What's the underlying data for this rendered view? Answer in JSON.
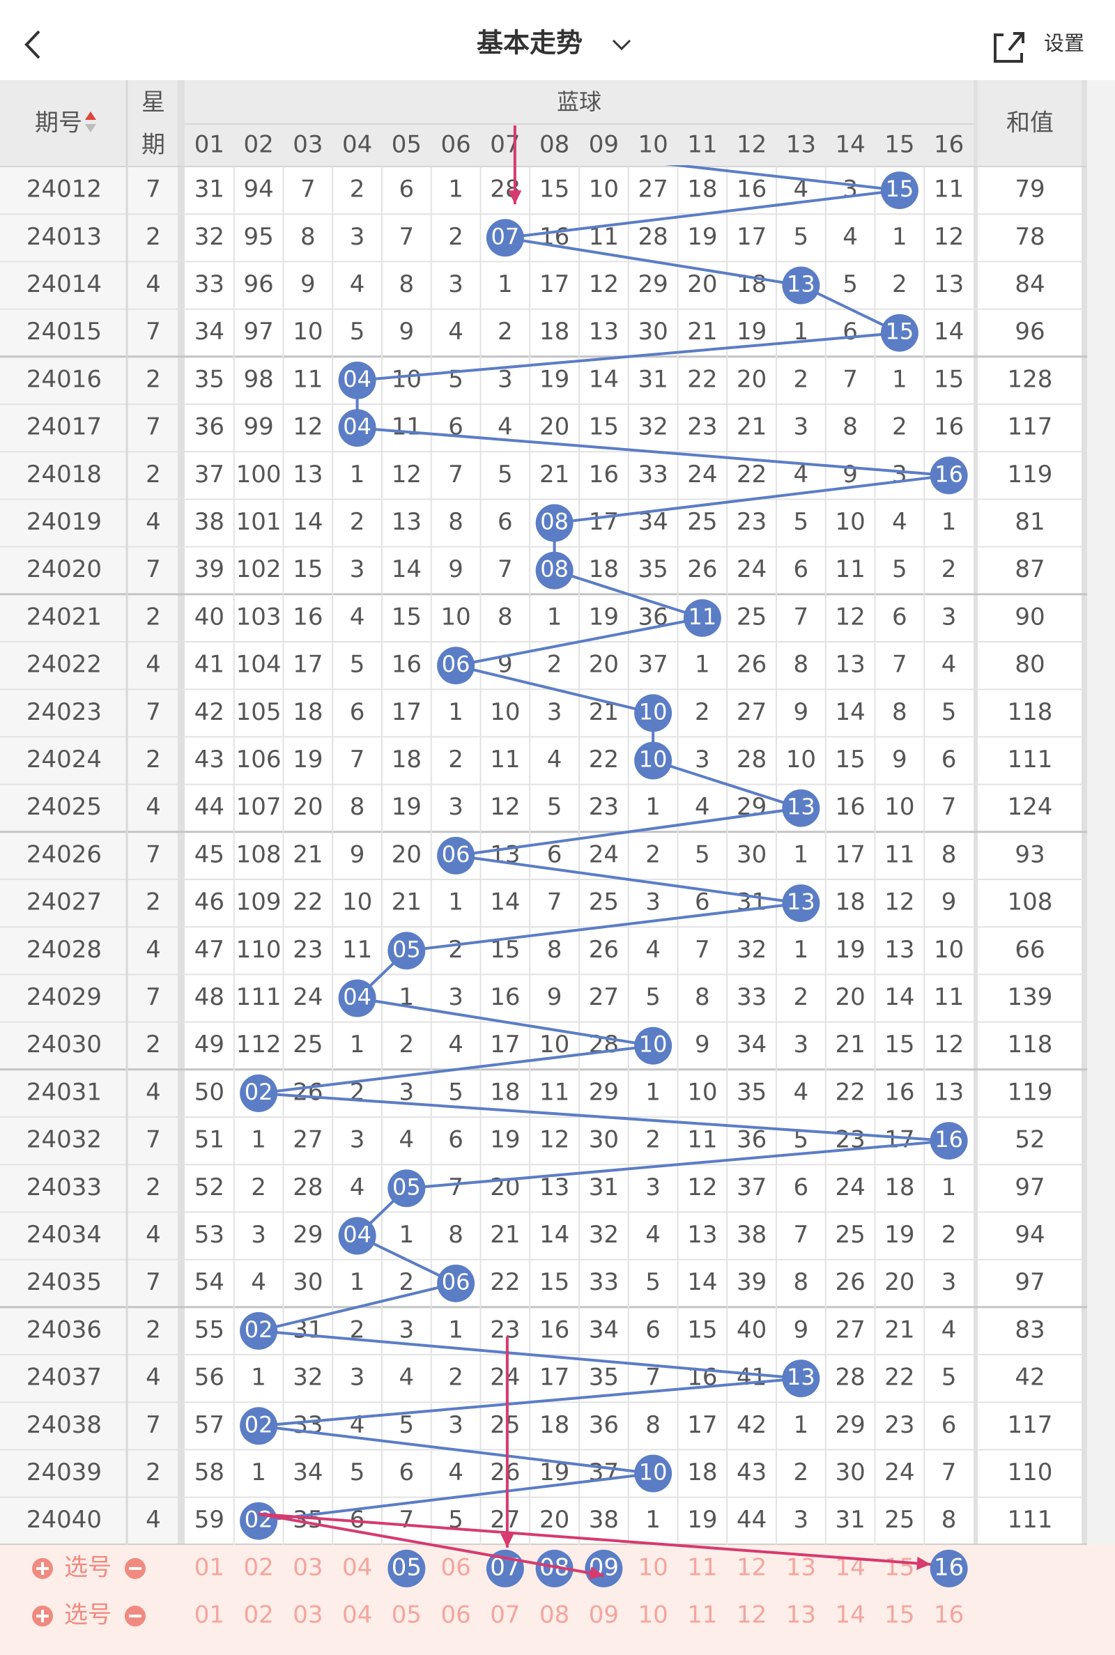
{
  "header": {
    "title": "基本走势",
    "settings": "设置"
  },
  "table": {
    "period_header": "期号",
    "weekday_header": "星期",
    "blue_header": "蓝球",
    "sum_header": "和值",
    "columns": [
      "01",
      "02",
      "03",
      "04",
      "05",
      "06",
      "07",
      "08",
      "09",
      "10",
      "11",
      "12",
      "13",
      "14",
      "15",
      "16"
    ],
    "rows": [
      {
        "period": "24012",
        "weekday": "7",
        "hit": 14,
        "cells": [
          "31",
          "94",
          "7",
          "2",
          "6",
          "1",
          "28",
          "15",
          "10",
          "27",
          "18",
          "16",
          "4",
          "3",
          "15",
          "11"
        ],
        "sum": "79"
      },
      {
        "period": "24013",
        "weekday": "2",
        "hit": 6,
        "cells": [
          "32",
          "95",
          "8",
          "3",
          "7",
          "2",
          "07",
          "16",
          "11",
          "28",
          "19",
          "17",
          "5",
          "4",
          "1",
          "12"
        ],
        "sum": "78"
      },
      {
        "period": "24014",
        "weekday": "4",
        "hit": 12,
        "cells": [
          "33",
          "96",
          "9",
          "4",
          "8",
          "3",
          "1",
          "17",
          "12",
          "29",
          "20",
          "18",
          "13",
          "5",
          "2",
          "13"
        ],
        "sum": "84"
      },
      {
        "period": "24015",
        "weekday": "7",
        "hit": 14,
        "cells": [
          "34",
          "97",
          "10",
          "5",
          "9",
          "4",
          "2",
          "18",
          "13",
          "30",
          "21",
          "19",
          "1",
          "6",
          "15",
          "14"
        ],
        "sum": "96"
      },
      {
        "period": "24016",
        "weekday": "2",
        "hit": 3,
        "cells": [
          "35",
          "98",
          "11",
          "04",
          "10",
          "5",
          "3",
          "19",
          "14",
          "31",
          "22",
          "20",
          "2",
          "7",
          "1",
          "15"
        ],
        "sum": "128"
      },
      {
        "period": "24017",
        "weekday": "7",
        "hit": 3,
        "cells": [
          "36",
          "99",
          "12",
          "04",
          "11",
          "6",
          "4",
          "20",
          "15",
          "32",
          "23",
          "21",
          "3",
          "8",
          "2",
          "16"
        ],
        "sum": "117"
      },
      {
        "period": "24018",
        "weekday": "2",
        "hit": 15,
        "cells": [
          "37",
          "100",
          "13",
          "1",
          "12",
          "7",
          "5",
          "21",
          "16",
          "33",
          "24",
          "22",
          "4",
          "9",
          "3",
          "16"
        ],
        "sum": "119"
      },
      {
        "period": "24019",
        "weekday": "4",
        "hit": 7,
        "cells": [
          "38",
          "101",
          "14",
          "2",
          "13",
          "8",
          "6",
          "08",
          "17",
          "34",
          "25",
          "23",
          "5",
          "10",
          "4",
          "1"
        ],
        "sum": "81"
      },
      {
        "period": "24020",
        "weekday": "7",
        "hit": 7,
        "cells": [
          "39",
          "102",
          "15",
          "3",
          "14",
          "9",
          "7",
          "08",
          "18",
          "35",
          "26",
          "24",
          "6",
          "11",
          "5",
          "2"
        ],
        "sum": "87"
      },
      {
        "period": "24021",
        "weekday": "2",
        "hit": 10,
        "cells": [
          "40",
          "103",
          "16",
          "4",
          "15",
          "10",
          "8",
          "1",
          "19",
          "36",
          "11",
          "25",
          "7",
          "12",
          "6",
          "3"
        ],
        "sum": "90"
      },
      {
        "period": "24022",
        "weekday": "4",
        "hit": 5,
        "cells": [
          "41",
          "104",
          "17",
          "5",
          "16",
          "06",
          "9",
          "2",
          "20",
          "37",
          "1",
          "26",
          "8",
          "13",
          "7",
          "4"
        ],
        "sum": "80"
      },
      {
        "period": "24023",
        "weekday": "7",
        "hit": 9,
        "cells": [
          "42",
          "105",
          "18",
          "6",
          "17",
          "1",
          "10",
          "3",
          "21",
          "10",
          "2",
          "27",
          "9",
          "14",
          "8",
          "5"
        ],
        "sum": "118"
      },
      {
        "period": "24024",
        "weekday": "2",
        "hit": 9,
        "cells": [
          "43",
          "106",
          "19",
          "7",
          "18",
          "2",
          "11",
          "4",
          "22",
          "10",
          "3",
          "28",
          "10",
          "15",
          "9",
          "6"
        ],
        "sum": "111"
      },
      {
        "period": "24025",
        "weekday": "4",
        "hit": 12,
        "cells": [
          "44",
          "107",
          "20",
          "8",
          "19",
          "3",
          "12",
          "5",
          "23",
          "1",
          "4",
          "29",
          "13",
          "16",
          "10",
          "7"
        ],
        "sum": "124"
      },
      {
        "period": "24026",
        "weekday": "7",
        "hit": 5,
        "cells": [
          "45",
          "108",
          "21",
          "9",
          "20",
          "06",
          "13",
          "6",
          "24",
          "2",
          "5",
          "30",
          "1",
          "17",
          "11",
          "8"
        ],
        "sum": "93"
      },
      {
        "period": "24027",
        "weekday": "2",
        "hit": 12,
        "cells": [
          "46",
          "109",
          "22",
          "10",
          "21",
          "1",
          "14",
          "7",
          "25",
          "3",
          "6",
          "31",
          "13",
          "18",
          "12",
          "9"
        ],
        "sum": "108"
      },
      {
        "period": "24028",
        "weekday": "4",
        "hit": 4,
        "cells": [
          "47",
          "110",
          "23",
          "11",
          "05",
          "2",
          "15",
          "8",
          "26",
          "4",
          "7",
          "32",
          "1",
          "19",
          "13",
          "10"
        ],
        "sum": "66"
      },
      {
        "period": "24029",
        "weekday": "7",
        "hit": 3,
        "cells": [
          "48",
          "111",
          "24",
          "04",
          "1",
          "3",
          "16",
          "9",
          "27",
          "5",
          "8",
          "33",
          "2",
          "20",
          "14",
          "11"
        ],
        "sum": "139"
      },
      {
        "period": "24030",
        "weekday": "2",
        "hit": 9,
        "cells": [
          "49",
          "112",
          "25",
          "1",
          "2",
          "4",
          "17",
          "10",
          "28",
          "10",
          "9",
          "34",
          "3",
          "21",
          "15",
          "12"
        ],
        "sum": "118"
      },
      {
        "period": "24031",
        "weekday": "4",
        "hit": 1,
        "cells": [
          "50",
          "02",
          "26",
          "2",
          "3",
          "5",
          "18",
          "11",
          "29",
          "1",
          "10",
          "35",
          "4",
          "22",
          "16",
          "13"
        ],
        "sum": "119"
      },
      {
        "period": "24032",
        "weekday": "7",
        "hit": 15,
        "cells": [
          "51",
          "1",
          "27",
          "3",
          "4",
          "6",
          "19",
          "12",
          "30",
          "2",
          "11",
          "36",
          "5",
          "23",
          "17",
          "16"
        ],
        "sum": "52"
      },
      {
        "period": "24033",
        "weekday": "2",
        "hit": 4,
        "cells": [
          "52",
          "2",
          "28",
          "4",
          "05",
          "7",
          "20",
          "13",
          "31",
          "3",
          "12",
          "37",
          "6",
          "24",
          "18",
          "1"
        ],
        "sum": "97"
      },
      {
        "period": "24034",
        "weekday": "4",
        "hit": 3,
        "cells": [
          "53",
          "3",
          "29",
          "04",
          "1",
          "8",
          "21",
          "14",
          "32",
          "4",
          "13",
          "38",
          "7",
          "25",
          "19",
          "2"
        ],
        "sum": "94"
      },
      {
        "period": "24035",
        "weekday": "7",
        "hit": 5,
        "cells": [
          "54",
          "4",
          "30",
          "1",
          "2",
          "06",
          "22",
          "15",
          "33",
          "5",
          "14",
          "39",
          "8",
          "26",
          "20",
          "3"
        ],
        "sum": "97"
      },
      {
        "period": "24036",
        "weekday": "2",
        "hit": 1,
        "cells": [
          "55",
          "02",
          "31",
          "2",
          "3",
          "1",
          "23",
          "16",
          "34",
          "6",
          "15",
          "40",
          "9",
          "27",
          "21",
          "4"
        ],
        "sum": "83"
      },
      {
        "period": "24037",
        "weekday": "4",
        "hit": 12,
        "cells": [
          "56",
          "1",
          "32",
          "3",
          "4",
          "2",
          "24",
          "17",
          "35",
          "7",
          "16",
          "41",
          "13",
          "28",
          "22",
          "5"
        ],
        "sum": "42"
      },
      {
        "period": "24038",
        "weekday": "7",
        "hit": 1,
        "cells": [
          "57",
          "02",
          "33",
          "4",
          "5",
          "3",
          "25",
          "18",
          "36",
          "8",
          "17",
          "42",
          "1",
          "29",
          "23",
          "6"
        ],
        "sum": "117"
      },
      {
        "period": "24039",
        "weekday": "2",
        "hit": 9,
        "cells": [
          "58",
          "1",
          "34",
          "5",
          "6",
          "4",
          "26",
          "19",
          "37",
          "10",
          "18",
          "43",
          "2",
          "30",
          "24",
          "7"
        ],
        "sum": "110"
      },
      {
        "period": "24040",
        "weekday": "4",
        "hit": 1,
        "cells": [
          "59",
          "02",
          "35",
          "6",
          "7",
          "5",
          "27",
          "20",
          "38",
          "1",
          "19",
          "44",
          "3",
          "31",
          "25",
          "8"
        ],
        "sum": "111"
      }
    ]
  },
  "selection_rows": [
    {
      "label": "选号",
      "selected": [
        4,
        6,
        7,
        8,
        15
      ]
    },
    {
      "label": "选号",
      "selected": []
    }
  ]
}
